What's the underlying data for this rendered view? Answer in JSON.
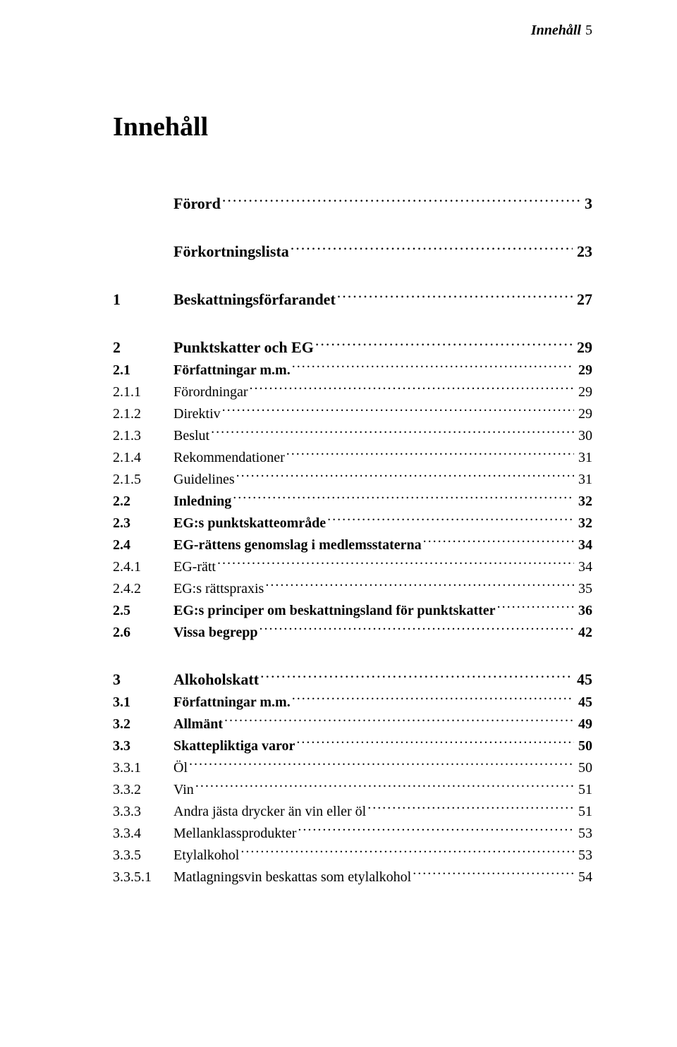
{
  "running_head": {
    "label": "Innehåll",
    "page": "5"
  },
  "doc_title": "Innehåll",
  "blocks": [
    {
      "rows": [
        {
          "level": "top",
          "num": "",
          "label": "Förord",
          "page": "3"
        }
      ]
    },
    {
      "rows": [
        {
          "level": "top",
          "num": "",
          "label": "Förkortningslista",
          "page": "23"
        }
      ]
    },
    {
      "rows": [
        {
          "level": "chapter",
          "num": "1",
          "label": "Beskattningsförfarandet",
          "page": "27"
        }
      ]
    },
    {
      "rows": [
        {
          "level": "chapter",
          "num": "2",
          "label": "Punktskatter och EG",
          "page": "29"
        },
        {
          "level": "section",
          "num": "2.1",
          "label": "Författningar m.m.",
          "page": "29"
        },
        {
          "level": "sub",
          "num": "2.1.1",
          "label": "Förordningar",
          "page": "29"
        },
        {
          "level": "sub",
          "num": "2.1.2",
          "label": "Direktiv",
          "page": "29"
        },
        {
          "level": "sub",
          "num": "2.1.3",
          "label": "Beslut",
          "page": "30"
        },
        {
          "level": "sub",
          "num": "2.1.4",
          "label": "Rekommendationer",
          "page": "31"
        },
        {
          "level": "sub",
          "num": "2.1.5",
          "label": "Guidelines",
          "page": "31"
        },
        {
          "level": "section",
          "num": "2.2",
          "label": "Inledning",
          "page": "32"
        },
        {
          "level": "section",
          "num": "2.3",
          "label": "EG:s punktskatteområde",
          "page": "32"
        },
        {
          "level": "section",
          "num": "2.4",
          "label": "EG-rättens genomslag i medlemsstaterna",
          "page": "34"
        },
        {
          "level": "sub",
          "num": "2.4.1",
          "label": "EG-rätt",
          "page": "34"
        },
        {
          "level": "sub",
          "num": "2.4.2",
          "label": "EG:s rättspraxis",
          "page": "35"
        },
        {
          "level": "section",
          "num": "2.5",
          "label": "EG:s principer om beskattningsland för punktskatter",
          "page": "36"
        },
        {
          "level": "section",
          "num": "2.6",
          "label": "Vissa begrepp",
          "page": "42"
        }
      ]
    },
    {
      "rows": [
        {
          "level": "chapter",
          "num": "3",
          "label": "Alkoholskatt",
          "page": "45"
        },
        {
          "level": "section",
          "num": "3.1",
          "label": "Författningar m.m.",
          "page": "45"
        },
        {
          "level": "section",
          "num": "3.2",
          "label": "Allmänt",
          "page": "49"
        },
        {
          "level": "section",
          "num": "3.3",
          "label": "Skattepliktiga varor",
          "page": "50"
        },
        {
          "level": "sub",
          "num": "3.3.1",
          "label": "Öl",
          "page": "50"
        },
        {
          "level": "sub",
          "num": "3.3.2",
          "label": "Vin",
          "page": "51"
        },
        {
          "level": "sub",
          "num": "3.3.3",
          "label": "Andra jästa drycker än vin eller öl",
          "page": "51"
        },
        {
          "level": "sub",
          "num": "3.3.4",
          "label": "Mellanklassprodukter",
          "page": "53"
        },
        {
          "level": "sub",
          "num": "3.3.5",
          "label": "Etylalkohol",
          "page": "53"
        },
        {
          "level": "sub",
          "num": "3.3.5.1",
          "label": "Matlagningsvin beskattas som etylalkohol",
          "page": "54"
        }
      ]
    }
  ]
}
